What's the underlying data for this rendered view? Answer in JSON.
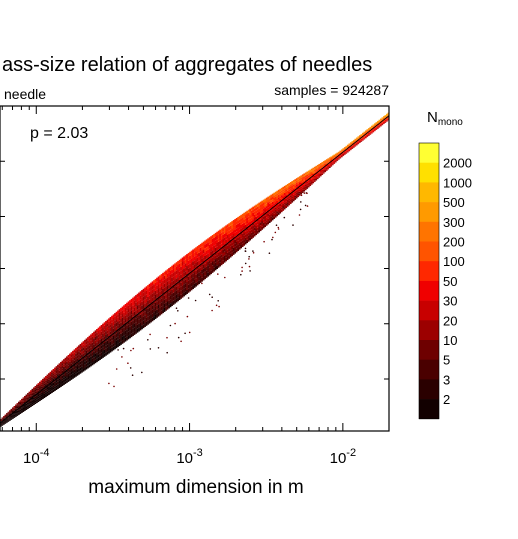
{
  "chart_data": {
    "type": "heatmap",
    "title": "ass-size relation of aggregates of needles",
    "subtitle_left": "needle",
    "subtitle_right": "samples = 924287",
    "annotation": "p = 2.03",
    "xlabel": "maximum dimension in m",
    "ylabel": "",
    "x_scale": "log",
    "xlim": [
      5.8e-05,
      0.02
    ],
    "x_ticks": [
      {
        "value": 0.0001,
        "base": "10",
        "exp": "-4"
      },
      {
        "value": 0.001,
        "base": "10",
        "exp": "-3"
      },
      {
        "value": 0.01,
        "base": "10",
        "exp": "-2"
      }
    ],
    "fit_line": {
      "label": "p = 2.03",
      "slope_loglog": 2.03,
      "x": [
        5.8e-05,
        0.02
      ],
      "y_rel": [
        0.024,
        0.97
      ],
      "color": "#000000"
    },
    "point_cloud": {
      "x_range": [
        5.8e-05,
        0.02
      ],
      "colormap_order": "low to high"
    },
    "colorbar": {
      "title_main": "N",
      "title_sub": "mono",
      "labels": [
        "2000",
        "1000",
        "500",
        "300",
        "200",
        "100",
        "50",
        "30",
        "20",
        "10",
        "5",
        "3",
        "2"
      ],
      "colors": [
        "#ffff33",
        "#ffe000",
        "#ffb800",
        "#ff9a00",
        "#ff7400",
        "#ff5400",
        "#ff2800",
        "#f00000",
        "#c80000",
        "#9c0000",
        "#6e0000",
        "#4a0000",
        "#2a0000",
        "#120000"
      ]
    }
  }
}
